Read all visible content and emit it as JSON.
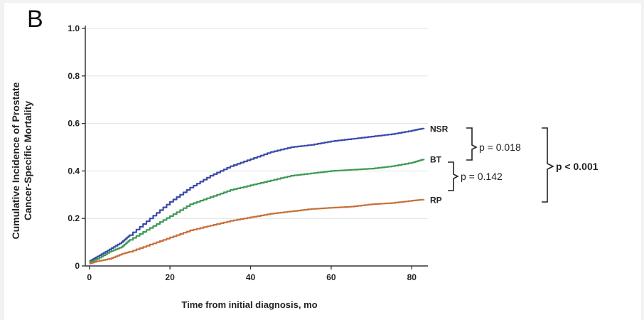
{
  "panel_letter": "B",
  "chart_data": {
    "type": "line",
    "xlabel": "Time from initial diagnosis, mo",
    "ylabel_lines": [
      "Cumulative Incidence of Prostate",
      "Cancer-Specific Mortality"
    ],
    "xlim": [
      -1,
      84
    ],
    "ylim": [
      0,
      1.0
    ],
    "x_ticks": [
      0,
      20,
      40,
      60,
      80
    ],
    "y_ticks": [
      0,
      0.2,
      0.4,
      0.6,
      0.8,
      1.0
    ],
    "y_tick_labels": [
      "0",
      "0.2",
      "0.4",
      "0.6",
      "0.8",
      "1.0"
    ],
    "grid": true,
    "series": [
      {
        "name": "NSR",
        "color": "#3a4aa8",
        "x": [
          0,
          2,
          5,
          8,
          10,
          15,
          20,
          25,
          30,
          35,
          40,
          45,
          50,
          55,
          60,
          65,
          70,
          75,
          80,
          83
        ],
        "y": [
          0.02,
          0.04,
          0.07,
          0.1,
          0.13,
          0.2,
          0.27,
          0.33,
          0.38,
          0.42,
          0.45,
          0.48,
          0.5,
          0.51,
          0.525,
          0.535,
          0.545,
          0.555,
          0.57,
          0.58
        ]
      },
      {
        "name": "BT",
        "color": "#3f9a55",
        "x": [
          0,
          2,
          5,
          8,
          10,
          15,
          20,
          25,
          30,
          35,
          40,
          45,
          50,
          55,
          60,
          65,
          70,
          75,
          80,
          83
        ],
        "y": [
          0.015,
          0.03,
          0.06,
          0.08,
          0.11,
          0.16,
          0.21,
          0.26,
          0.29,
          0.32,
          0.34,
          0.36,
          0.38,
          0.39,
          0.4,
          0.405,
          0.41,
          0.42,
          0.435,
          0.45
        ]
      },
      {
        "name": "RP",
        "color": "#c8703a",
        "x": [
          0,
          2,
          5,
          8,
          10,
          15,
          20,
          25,
          30,
          35,
          40,
          45,
          50,
          55,
          60,
          65,
          70,
          75,
          80,
          83
        ],
        "y": [
          0.01,
          0.02,
          0.03,
          0.05,
          0.06,
          0.09,
          0.12,
          0.15,
          0.17,
          0.19,
          0.205,
          0.22,
          0.23,
          0.24,
          0.245,
          0.25,
          0.26,
          0.265,
          0.275,
          0.28
        ]
      }
    ],
    "annotations": [
      {
        "text": "p = 0.018",
        "compares": [
          "NSR",
          "BT"
        ]
      },
      {
        "text": "p = 0.142",
        "compares": [
          "BT",
          "RP"
        ]
      },
      {
        "text": "p < 0.001",
        "compares": [
          "NSR",
          "RP"
        ]
      }
    ]
  }
}
